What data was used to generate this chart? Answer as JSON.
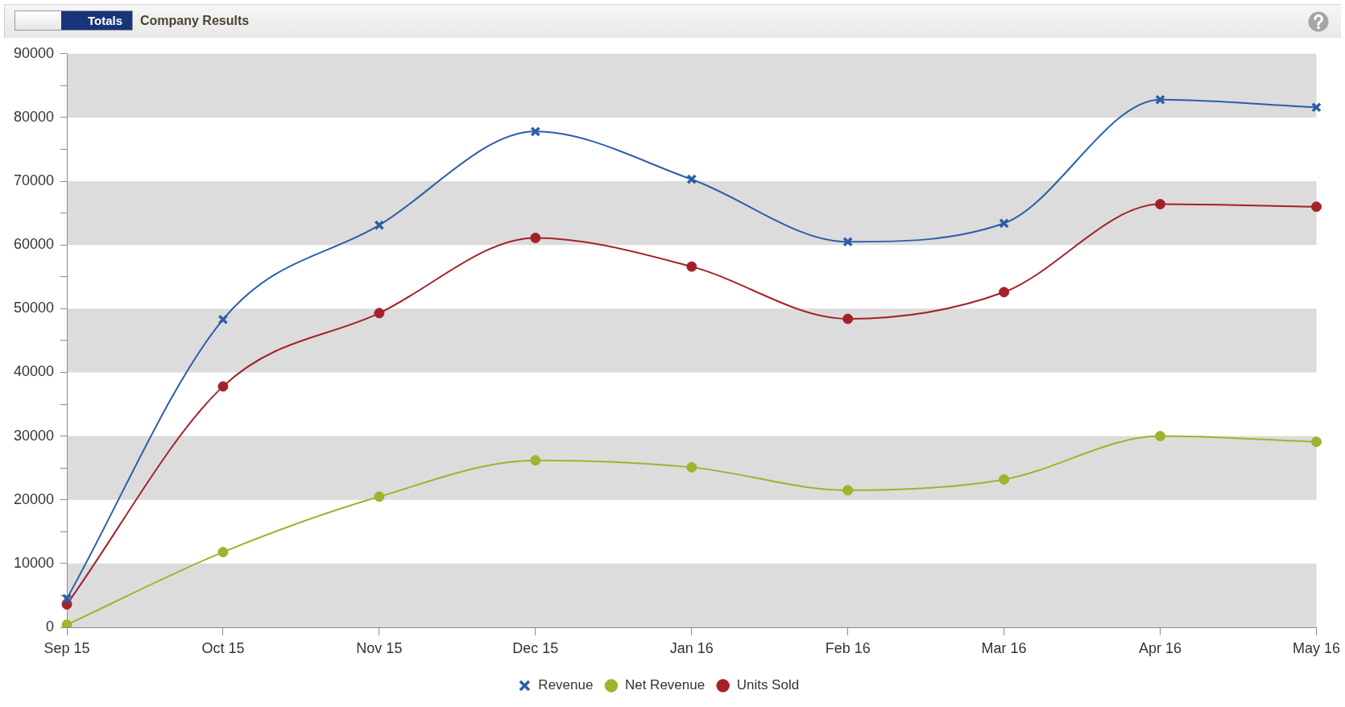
{
  "chart_data": {
    "type": "line",
    "title": "Company Results",
    "annotations": [
      "Totals"
    ],
    "categories": [
      "Sep 15",
      "Oct 15",
      "Nov 15",
      "Dec 15",
      "Jan 16",
      "Feb 16",
      "Mar 16",
      "Apr 16",
      "May 16"
    ],
    "series": [
      {
        "name": "Revenue",
        "color": "#2c5ea8",
        "marker": "cross",
        "values": [
          4500,
          48300,
          63100,
          77800,
          70300,
          60500,
          63400,
          82800,
          81600
        ]
      },
      {
        "name": "Net Revenue",
        "color": "#9bb52d",
        "marker": "circle",
        "values": [
          400,
          11800,
          20500,
          26200,
          25100,
          21500,
          23200,
          30000,
          29100
        ]
      },
      {
        "name": "Units Sold",
        "color": "#a3222a",
        "marker": "circle",
        "values": [
          3600,
          37800,
          49300,
          61100,
          56600,
          48400,
          52600,
          66400,
          66000
        ]
      }
    ],
    "ylim": [
      0,
      90000
    ],
    "yticks": [
      0,
      {
        "value": 5000,
        "label": null
      },
      10000,
      {
        "value": 15000,
        "label": null
      },
      20000,
      {
        "value": 25000,
        "label": null
      },
      30000,
      {
        "value": 35000,
        "label": null
      },
      40000,
      {
        "value": 45000,
        "label": null
      },
      50000,
      {
        "value": 55000,
        "label": null
      },
      60000,
      {
        "value": 65000,
        "label": null
      },
      70000,
      {
        "value": 75000,
        "label": null
      },
      80000,
      {
        "value": 85000,
        "label": null
      },
      90000
    ],
    "bands": [
      {
        "axis": "y",
        "from": 0,
        "to": 10000,
        "color": "#dcdcdc"
      },
      {
        "axis": "y",
        "from": 20000,
        "to": 30000,
        "color": "#dcdcdc"
      },
      {
        "axis": "y",
        "from": 40000,
        "to": 50000,
        "color": "#dcdcdc"
      },
      {
        "axis": "y",
        "from": 60000,
        "to": 70000,
        "color": "#dcdcdc"
      },
      {
        "axis": "y",
        "from": 80000,
        "to": 90000,
        "color": "#dcdcdc"
      }
    ],
    "legend": "bottom"
  }
}
